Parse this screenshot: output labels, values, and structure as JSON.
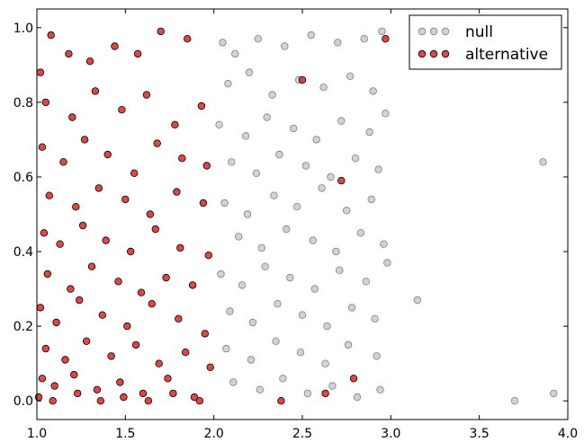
{
  "chart_data": {
    "type": "scatter",
    "title": "",
    "xlabel": "",
    "ylabel": "",
    "xlim": [
      1.0,
      4.0
    ],
    "ylim": [
      -0.05,
      1.05
    ],
    "x_ticks": [
      "1.0",
      "1.5",
      "2.0",
      "2.5",
      "3.0",
      "3.5",
      "4.0"
    ],
    "y_ticks": [
      "0.0",
      "0.2",
      "0.4",
      "0.6",
      "0.8",
      "1.0"
    ],
    "grid": false,
    "legend_position": "top-right",
    "series": [
      {
        "name": "null",
        "color": "#bfbfbf",
        "edge_color": "#7f7f7f",
        "points": [
          [
            2.05,
            0.96
          ],
          [
            2.12,
            0.93
          ],
          [
            2.25,
            0.97
          ],
          [
            2.4,
            0.95
          ],
          [
            2.55,
            0.98
          ],
          [
            2.7,
            0.96
          ],
          [
            2.85,
            0.97
          ],
          [
            2.95,
            0.99
          ],
          [
            2.08,
            0.85
          ],
          [
            2.2,
            0.88
          ],
          [
            2.33,
            0.82
          ],
          [
            2.48,
            0.86
          ],
          [
            2.62,
            0.84
          ],
          [
            2.77,
            0.87
          ],
          [
            2.9,
            0.83
          ],
          [
            2.03,
            0.74
          ],
          [
            2.18,
            0.71
          ],
          [
            2.3,
            0.76
          ],
          [
            2.45,
            0.73
          ],
          [
            2.58,
            0.7
          ],
          [
            2.72,
            0.75
          ],
          [
            2.88,
            0.72
          ],
          [
            2.97,
            0.77
          ],
          [
            2.1,
            0.64
          ],
          [
            2.24,
            0.61
          ],
          [
            2.37,
            0.66
          ],
          [
            2.52,
            0.63
          ],
          [
            2.66,
            0.6
          ],
          [
            2.8,
            0.65
          ],
          [
            2.93,
            0.62
          ],
          [
            2.06,
            0.53
          ],
          [
            2.19,
            0.5
          ],
          [
            2.34,
            0.55
          ],
          [
            2.47,
            0.52
          ],
          [
            2.61,
            0.57
          ],
          [
            2.75,
            0.51
          ],
          [
            2.89,
            0.54
          ],
          [
            2.14,
            0.44
          ],
          [
            2.27,
            0.41
          ],
          [
            2.41,
            0.46
          ],
          [
            2.56,
            0.43
          ],
          [
            2.69,
            0.4
          ],
          [
            2.83,
            0.45
          ],
          [
            2.96,
            0.42
          ],
          [
            2.04,
            0.34
          ],
          [
            2.16,
            0.31
          ],
          [
            2.29,
            0.36
          ],
          [
            2.43,
            0.33
          ],
          [
            2.57,
            0.3
          ],
          [
            2.71,
            0.35
          ],
          [
            2.86,
            0.32
          ],
          [
            2.98,
            0.37
          ],
          [
            2.09,
            0.24
          ],
          [
            2.22,
            0.21
          ],
          [
            2.36,
            0.26
          ],
          [
            2.5,
            0.23
          ],
          [
            2.64,
            0.2
          ],
          [
            2.78,
            0.25
          ],
          [
            2.91,
            0.22
          ],
          [
            2.07,
            0.14
          ],
          [
            2.21,
            0.11
          ],
          [
            2.35,
            0.16
          ],
          [
            2.49,
            0.13
          ],
          [
            2.63,
            0.1
          ],
          [
            2.76,
            0.15
          ],
          [
            2.92,
            0.12
          ],
          [
            2.11,
            0.05
          ],
          [
            2.26,
            0.03
          ],
          [
            2.39,
            0.06
          ],
          [
            2.53,
            0.02
          ],
          [
            2.67,
            0.04
          ],
          [
            2.81,
            0.01
          ],
          [
            2.94,
            0.03
          ],
          [
            3.15,
            0.27
          ],
          [
            3.7,
            0.0
          ],
          [
            3.86,
            0.64
          ],
          [
            3.92,
            0.02
          ]
        ]
      },
      {
        "name": "alternative",
        "color": "#d62728",
        "edge_color": "#000000",
        "points": [
          [
            1.02,
            0.88
          ],
          [
            1.08,
            0.98
          ],
          [
            1.18,
            0.93
          ],
          [
            1.3,
            0.91
          ],
          [
            1.44,
            0.95
          ],
          [
            1.57,
            0.93
          ],
          [
            1.7,
            0.99
          ],
          [
            1.85,
            0.97
          ],
          [
            1.05,
            0.8
          ],
          [
            1.2,
            0.76
          ],
          [
            1.33,
            0.83
          ],
          [
            1.48,
            0.78
          ],
          [
            1.62,
            0.82
          ],
          [
            1.78,
            0.74
          ],
          [
            1.93,
            0.79
          ],
          [
            1.03,
            0.68
          ],
          [
            1.15,
            0.64
          ],
          [
            1.27,
            0.7
          ],
          [
            1.4,
            0.66
          ],
          [
            1.55,
            0.61
          ],
          [
            1.68,
            0.69
          ],
          [
            1.82,
            0.65
          ],
          [
            1.96,
            0.63
          ],
          [
            1.07,
            0.55
          ],
          [
            1.22,
            0.52
          ],
          [
            1.35,
            0.57
          ],
          [
            1.5,
            0.54
          ],
          [
            1.64,
            0.5
          ],
          [
            1.79,
            0.56
          ],
          [
            1.94,
            0.53
          ],
          [
            1.04,
            0.45
          ],
          [
            1.13,
            0.42
          ],
          [
            1.26,
            0.47
          ],
          [
            1.39,
            0.43
          ],
          [
            1.53,
            0.4
          ],
          [
            1.67,
            0.46
          ],
          [
            1.81,
            0.41
          ],
          [
            1.97,
            0.39
          ],
          [
            1.06,
            0.34
          ],
          [
            1.19,
            0.3
          ],
          [
            1.31,
            0.36
          ],
          [
            1.46,
            0.32
          ],
          [
            1.59,
            0.29
          ],
          [
            1.73,
            0.33
          ],
          [
            1.88,
            0.31
          ],
          [
            1.02,
            0.25
          ],
          [
            1.11,
            0.21
          ],
          [
            1.24,
            0.27
          ],
          [
            1.37,
            0.23
          ],
          [
            1.51,
            0.2
          ],
          [
            1.65,
            0.26
          ],
          [
            1.8,
            0.22
          ],
          [
            1.95,
            0.18
          ],
          [
            1.05,
            0.14
          ],
          [
            1.16,
            0.11
          ],
          [
            1.28,
            0.16
          ],
          [
            1.42,
            0.12
          ],
          [
            1.56,
            0.15
          ],
          [
            1.69,
            0.1
          ],
          [
            1.84,
            0.13
          ],
          [
            1.98,
            0.09
          ],
          [
            1.03,
            0.06
          ],
          [
            1.1,
            0.04
          ],
          [
            1.21,
            0.07
          ],
          [
            1.34,
            0.03
          ],
          [
            1.47,
            0.05
          ],
          [
            1.6,
            0.02
          ],
          [
            1.74,
            0.06
          ],
          [
            1.89,
            0.01
          ],
          [
            1.01,
            0.01
          ],
          [
            1.09,
            0.0
          ],
          [
            1.23,
            0.02
          ],
          [
            1.36,
            0.0
          ],
          [
            1.49,
            0.01
          ],
          [
            1.63,
            0.0
          ],
          [
            1.77,
            0.02
          ],
          [
            1.92,
            0.0
          ],
          [
            2.5,
            0.86
          ],
          [
            2.72,
            0.59
          ],
          [
            2.38,
            0.0
          ],
          [
            2.63,
            0.02
          ],
          [
            2.79,
            0.06
          ],
          [
            2.97,
            0.97
          ]
        ]
      }
    ]
  }
}
